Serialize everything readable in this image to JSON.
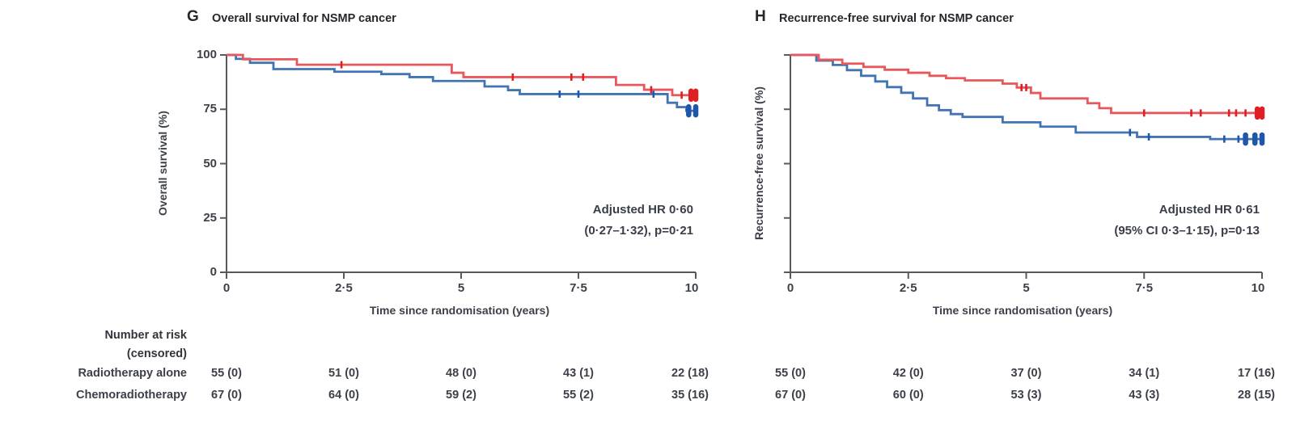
{
  "figure": {
    "panels": [
      {
        "letter": "G",
        "title": "Overall survival for NSMP cancer",
        "y_axis_label": "Overall survival (%)",
        "x_axis_label": "Time since randomisation (years)",
        "annotation_line1": "Adjusted HR 0·60",
        "annotation_line2": "(0·27–1·32), p=0·21"
      },
      {
        "letter": "H",
        "title": "Recurrence-free survival for NSMP cancer",
        "y_axis_label": "Recurrence-free survival (%)",
        "x_axis_label": "Time since randomisation (years)",
        "annotation_line1": "Adjusted HR 0·61",
        "annotation_line2": "(95% CI 0·3–1·15), p=0·13"
      }
    ],
    "risk_table": {
      "header_line1": "Number at risk",
      "header_line2": "(censored)",
      "row_labels": [
        "Radiotherapy alone",
        "Chemoradiotherapy"
      ]
    },
    "colors": {
      "radiotherapy_alone_line": "#4274b4",
      "radiotherapy_alone_censor": "#1e56a9",
      "chemoradiotherapy_line": "#e8575b",
      "chemoradiotherapy_censor": "#e01f24",
      "axis": "#58595b",
      "text": "#3c4049"
    }
  },
  "chart_data": [
    {
      "type": "line",
      "subtype": "kaplan_meier_step",
      "panel": "G",
      "title": "Overall survival for NSMP cancer",
      "xlabel": "Time since randomisation (years)",
      "ylabel": "Overall survival (%)",
      "xlim": [
        0,
        10
      ],
      "ylim": [
        0,
        100
      ],
      "x_ticks": [
        0,
        2.5,
        5,
        7.5,
        10
      ],
      "x_tick_labels": [
        "0",
        "2·5",
        "5",
        "7·5",
        "10"
      ],
      "y_ticks": [
        100,
        75,
        50,
        25,
        0
      ],
      "y_tick_labels": [
        "100",
        "75",
        "50",
        "25",
        "0"
      ],
      "show_y_tick_labels": true,
      "legend_position": "none",
      "grid": false,
      "annotation": "Adjusted HR 0·60 (0·27–1·32), p=0·21",
      "series": [
        {
          "name": "Radiotherapy alone",
          "color": "#4274b4",
          "censor_color": "#1e56a9",
          "steps": [
            [
              0,
              100
            ],
            [
              0.2,
              98.2
            ],
            [
              0.5,
              96.4
            ],
            [
              1.0,
              93.5
            ],
            [
              2.3,
              92.3
            ],
            [
              3.3,
              91.2
            ],
            [
              3.9,
              89.8
            ],
            [
              4.4,
              88.0
            ],
            [
              5.5,
              85.5
            ],
            [
              6.0,
              83.8
            ],
            [
              6.25,
              82.0
            ],
            [
              9.4,
              78.0
            ],
            [
              9.6,
              76.0
            ],
            [
              9.8,
              74.3
            ]
          ],
          "end_time": 10,
          "censors": [
            [
              7.1,
              82.0
            ],
            [
              7.5,
              82.0
            ],
            [
              9.1,
              82.0
            ]
          ],
          "end_markers": [
            [
              9.85,
              74.3
            ],
            [
              10,
              74.3
            ]
          ],
          "number_at_risk_censored": [
            "55 (0)",
            "51 (0)",
            "48 (0)",
            "43 (1)",
            "22 (18)"
          ]
        },
        {
          "name": "Chemoradiotherapy",
          "color": "#e8575b",
          "censor_color": "#e01f24",
          "steps": [
            [
              0,
              100
            ],
            [
              0.35,
              98.0
            ],
            [
              1.5,
              95.5
            ],
            [
              4.8,
              91.8
            ],
            [
              5.05,
              89.8
            ],
            [
              8.3,
              86.2
            ],
            [
              8.9,
              84.0
            ],
            [
              9.5,
              81.5
            ]
          ],
          "end_time": 10,
          "censors": [
            [
              2.45,
              95.5
            ],
            [
              6.1,
              89.8
            ],
            [
              7.35,
              89.8
            ],
            [
              7.6,
              89.8
            ],
            [
              9.05,
              84.0
            ],
            [
              9.7,
              81.5
            ]
          ],
          "end_markers": [
            [
              9.9,
              81.5
            ],
            [
              10,
              81.5
            ]
          ],
          "number_at_risk_censored": [
            "67 (0)",
            "64 (0)",
            "59 (2)",
            "55 (2)",
            "35 (16)"
          ]
        }
      ]
    },
    {
      "type": "line",
      "subtype": "kaplan_meier_step",
      "panel": "H",
      "title": "Recurrence-free survival for NSMP cancer",
      "xlabel": "Time since randomisation (years)",
      "ylabel": "Recurrence-free survival (%)",
      "xlim": [
        0,
        10
      ],
      "ylim": [
        0,
        100
      ],
      "x_ticks": [
        0,
        2.5,
        5,
        7.5,
        10
      ],
      "x_tick_labels": [
        "0",
        "2·5",
        "5",
        "7·5",
        "10"
      ],
      "y_ticks": [
        100,
        75,
        50,
        25,
        0
      ],
      "y_tick_labels": [],
      "show_y_tick_labels": false,
      "legend_position": "none",
      "grid": false,
      "annotation": "Adjusted HR 0·61 (95% CI 0·3–1·15), p=0·13",
      "series": [
        {
          "name": "Radiotherapy alone",
          "color": "#4274b4",
          "censor_color": "#1e56a9",
          "steps": [
            [
              0,
              100
            ],
            [
              0.55,
              97.4
            ],
            [
              0.9,
              95.4
            ],
            [
              1.2,
              93.0
            ],
            [
              1.5,
              90.4
            ],
            [
              1.8,
              87.8
            ],
            [
              2.05,
              85.2
            ],
            [
              2.35,
              82.6
            ],
            [
              2.6,
              80.0
            ],
            [
              2.9,
              76.8
            ],
            [
              3.15,
              74.6
            ],
            [
              3.4,
              72.8
            ],
            [
              3.65,
              71.5
            ],
            [
              4.5,
              69.0
            ],
            [
              5.3,
              67.0
            ],
            [
              6.05,
              64.3
            ],
            [
              7.35,
              62.3
            ],
            [
              8.9,
              61.3
            ]
          ],
          "end_time": 10,
          "censors": [
            [
              7.2,
              64.3
            ],
            [
              7.6,
              62.3
            ],
            [
              9.2,
              61.3
            ],
            [
              9.5,
              61.3
            ]
          ],
          "end_markers": [
            [
              9.65,
              61.3
            ],
            [
              9.85,
              61.3
            ],
            [
              10,
              61.3
            ]
          ],
          "number_at_risk_censored": [
            "55 (0)",
            "42 (0)",
            "37 (0)",
            "34 (1)",
            "17 (16)"
          ]
        },
        {
          "name": "Chemoradiotherapy",
          "color": "#e8575b",
          "censor_color": "#e01f24",
          "steps": [
            [
              0,
              100
            ],
            [
              0.6,
              97.8
            ],
            [
              1.1,
              96.0
            ],
            [
              1.55,
              94.5
            ],
            [
              2.0,
              93.2
            ],
            [
              2.5,
              91.8
            ],
            [
              2.95,
              90.4
            ],
            [
              3.3,
              89.3
            ],
            [
              3.7,
              88.3
            ],
            [
              4.5,
              86.8
            ],
            [
              4.8,
              85.0
            ],
            [
              5.1,
              82.5
            ],
            [
              5.3,
              80.0
            ],
            [
              6.3,
              77.8
            ],
            [
              6.55,
              75.5
            ],
            [
              6.8,
              73.3
            ]
          ],
          "end_time": 10,
          "censors": [
            [
              4.9,
              85.0
            ],
            [
              5.0,
              85.0
            ],
            [
              7.5,
              73.3
            ],
            [
              8.5,
              73.3
            ],
            [
              8.7,
              73.3
            ],
            [
              9.3,
              73.3
            ],
            [
              9.45,
              73.3
            ],
            [
              9.65,
              73.3
            ]
          ],
          "end_markers": [
            [
              9.9,
              73.3
            ],
            [
              10,
              73.3
            ]
          ],
          "number_at_risk_censored": [
            "67 (0)",
            "60 (0)",
            "53 (3)",
            "43 (3)",
            "28 (15)"
          ]
        }
      ]
    }
  ]
}
